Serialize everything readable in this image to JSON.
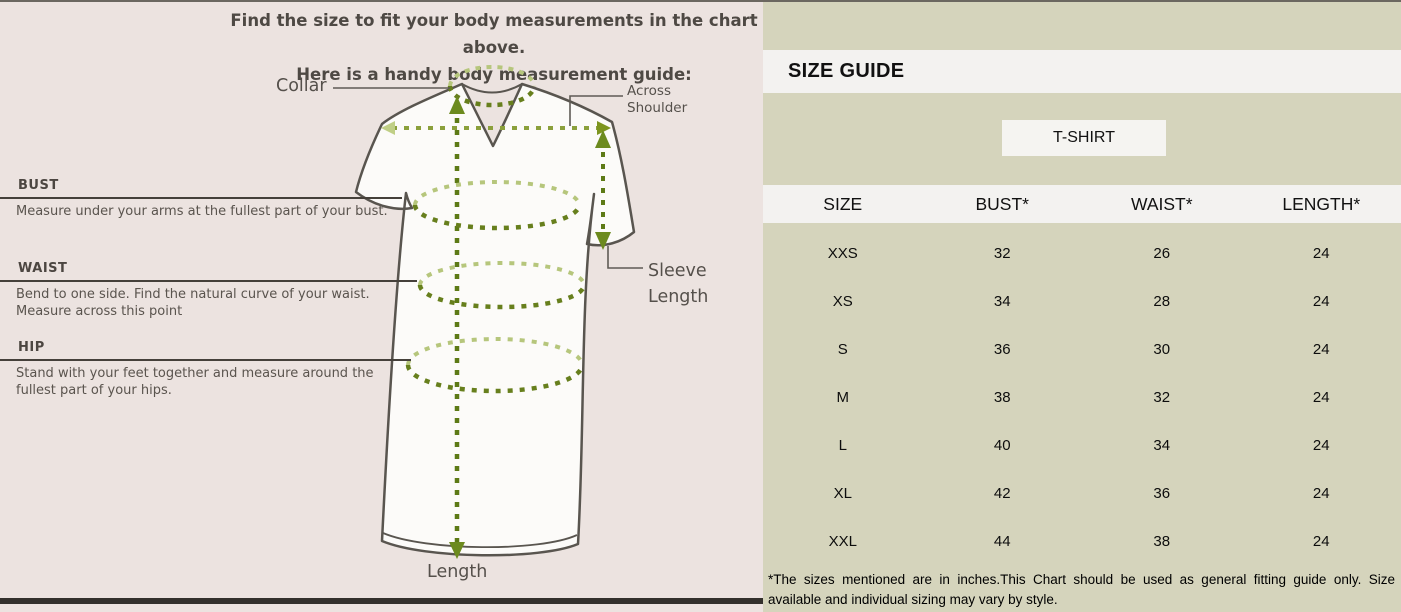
{
  "left_panel": {
    "title_line1": "Find the size to fit your body measurements in the chart above.",
    "title_line2": "Here is a handy body measurement guide:",
    "diagram_labels": {
      "collar": "Collar",
      "across_shoulder": "Across Shoulder",
      "sleeve_length": "Sleeve Length",
      "length": "Length"
    },
    "sections": [
      {
        "heading": "BUST",
        "description": "Measure under your arms at the fullest part of your bust."
      },
      {
        "heading": "WAIST",
        "description": "Bend to one side. Find the natural curve of your waist. Measure across this point"
      },
      {
        "heading": "HIP",
        "description": "Stand with your feet together and measure around the fullest part of your hips."
      }
    ]
  },
  "right_panel": {
    "title": "SIZE GUIDE",
    "tab_label": "T-SHIRT",
    "table": {
      "headers": [
        "SIZE",
        "BUST*",
        "WAIST*",
        "LENGTH*"
      ],
      "rows": [
        [
          "XXS",
          "32",
          "26",
          "24"
        ],
        [
          "XS",
          "34",
          "28",
          "24"
        ],
        [
          "S",
          "36",
          "30",
          "24"
        ],
        [
          "M",
          "38",
          "32",
          "24"
        ],
        [
          "L",
          "40",
          "34",
          "24"
        ],
        [
          "XL",
          "42",
          "36",
          "24"
        ],
        [
          "XXL",
          "44",
          "38",
          "24"
        ]
      ]
    },
    "footnote": "*The sizes mentioned are in inches.This Chart should be used as general fitting guide only. Size available and individual sizing may vary by style."
  },
  "colors": {
    "left_background": "#ece3e0",
    "right_background": "#d5d4bc",
    "panel_white": "#f3f2f0",
    "measurement_green_dark": "#677f1d",
    "measurement_green_light": "#b6c67c",
    "outline_gray": "#59554f",
    "text_dark": "#0e0e0e"
  }
}
